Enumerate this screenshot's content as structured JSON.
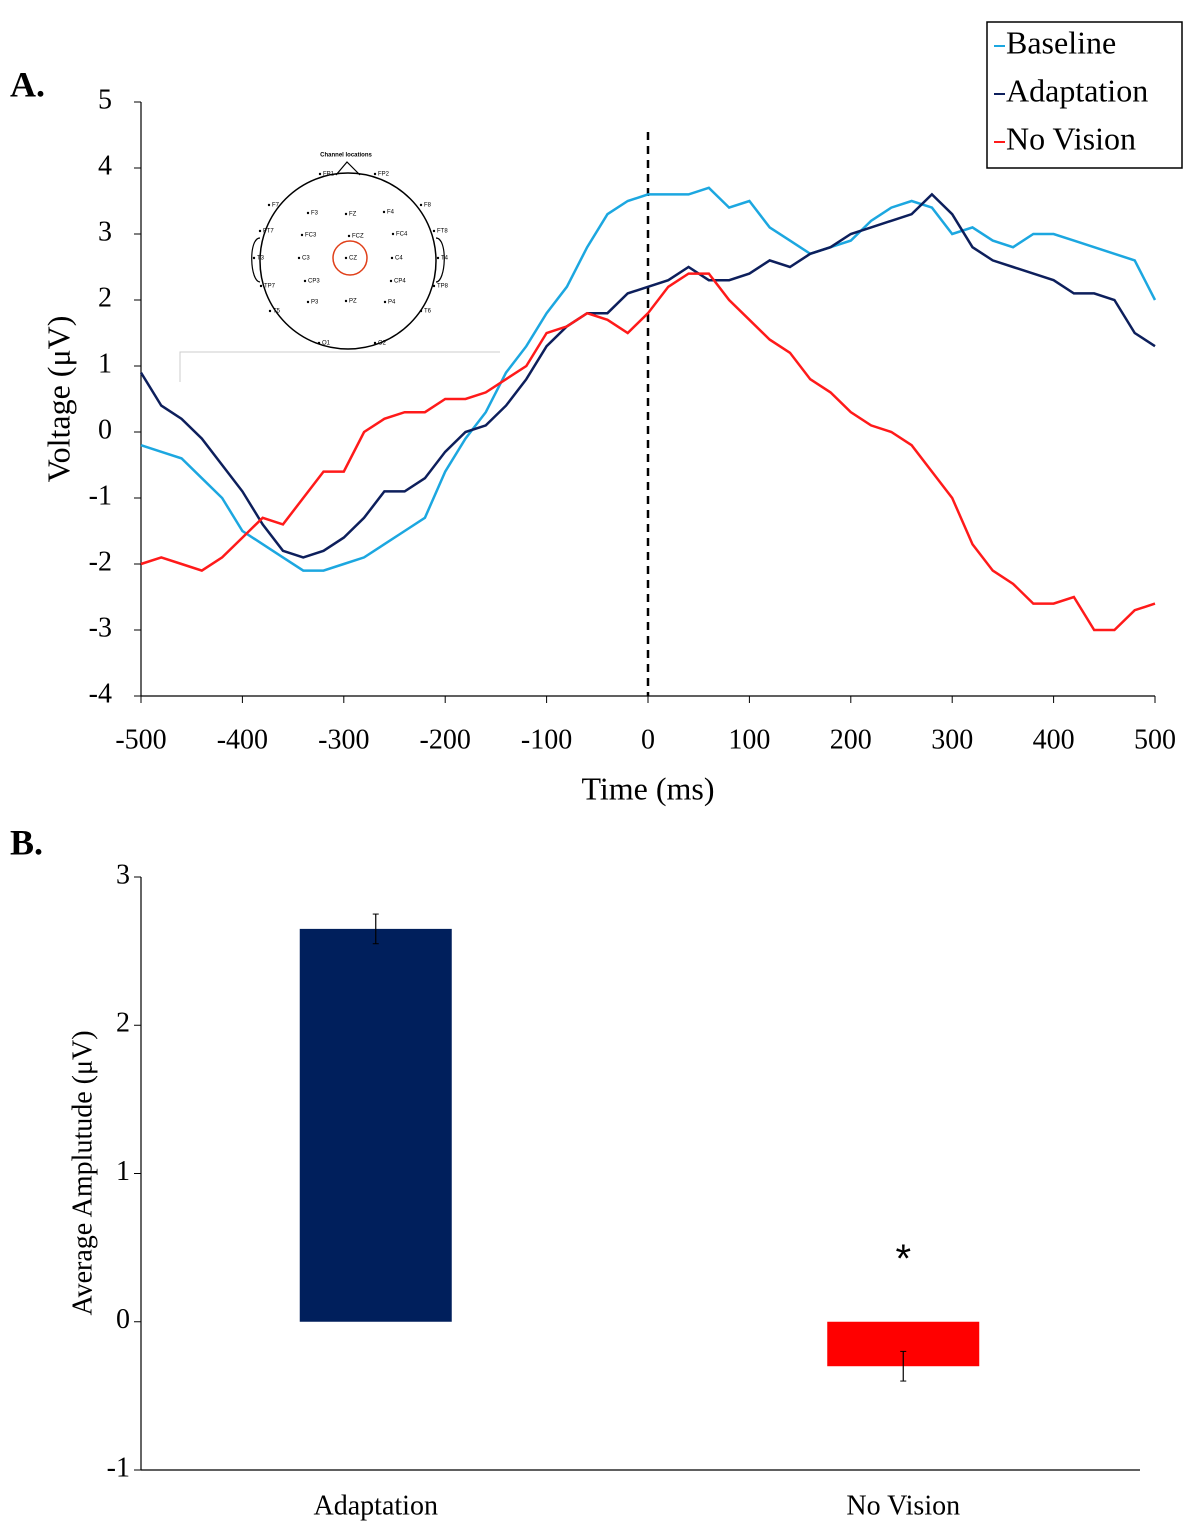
{
  "chart_data": [
    {
      "type": "line",
      "panel_label": "A.",
      "xlabel": "Time (ms)",
      "ylabel": "Voltage (μV)",
      "x": [
        -500,
        -480,
        -460,
        -440,
        -420,
        -400,
        -380,
        -360,
        -340,
        -320,
        -300,
        -280,
        -260,
        -240,
        -220,
        -200,
        -180,
        -160,
        -140,
        -120,
        -100,
        -80,
        -60,
        -40,
        -20,
        0,
        20,
        40,
        60,
        80,
        100,
        120,
        140,
        160,
        180,
        200,
        220,
        240,
        260,
        280,
        300,
        320,
        340,
        360,
        380,
        400,
        420,
        440,
        460,
        480,
        500
      ],
      "series": [
        {
          "name": "Baseline",
          "color": "#1ca7e0",
          "values": [
            -0.2,
            -0.3,
            -0.4,
            -0.7,
            -1.0,
            -1.5,
            -1.7,
            -1.9,
            -2.1,
            -2.1,
            -2.0,
            -1.9,
            -1.7,
            -1.5,
            -1.3,
            -0.6,
            -0.1,
            0.3,
            0.9,
            1.3,
            1.8,
            2.2,
            2.8,
            3.3,
            3.5,
            3.6,
            3.6,
            3.6,
            3.7,
            3.4,
            3.5,
            3.1,
            2.9,
            2.7,
            2.8,
            2.9,
            3.2,
            3.4,
            3.5,
            3.4,
            3.0,
            3.1,
            2.9,
            2.8,
            3.0,
            3.0,
            2.9,
            2.8,
            2.7,
            2.6,
            2.0
          ]
        },
        {
          "name": "Adaptation",
          "color": "#0d1f5c",
          "values": [
            0.9,
            0.4,
            0.2,
            -0.1,
            -0.5,
            -0.9,
            -1.4,
            -1.8,
            -1.9,
            -1.8,
            -1.6,
            -1.3,
            -0.9,
            -0.9,
            -0.7,
            -0.3,
            0.0,
            0.1,
            0.4,
            0.8,
            1.3,
            1.6,
            1.8,
            1.8,
            2.1,
            2.2,
            2.3,
            2.5,
            2.3,
            2.3,
            2.4,
            2.6,
            2.5,
            2.7,
            2.8,
            3.0,
            3.1,
            3.2,
            3.3,
            3.6,
            3.3,
            2.8,
            2.6,
            2.5,
            2.4,
            2.3,
            2.1,
            2.1,
            2.0,
            1.5,
            1.3
          ]
        },
        {
          "name": "No Vision",
          "color": "#ff1a1a",
          "values": [
            -2.0,
            -1.9,
            -2.0,
            -2.1,
            -1.9,
            -1.6,
            -1.3,
            -1.4,
            -1.0,
            -0.6,
            -0.6,
            0.0,
            0.2,
            0.3,
            0.3,
            0.5,
            0.5,
            0.6,
            0.8,
            1.0,
            1.5,
            1.6,
            1.8,
            1.7,
            1.5,
            1.8,
            2.2,
            2.4,
            2.4,
            2.0,
            1.7,
            1.4,
            1.2,
            0.8,
            0.6,
            0.3,
            0.1,
            0.0,
            -0.2,
            -0.6,
            -1.0,
            -1.7,
            -2.1,
            -2.3,
            -2.6,
            -2.6,
            -2.5,
            -3.0,
            -3.0,
            -2.7,
            -2.6
          ]
        }
      ],
      "xlim": [
        -500,
        500
      ],
      "xticks": [
        -500,
        -400,
        -300,
        -200,
        -100,
        0,
        100,
        200,
        300,
        400,
        500
      ],
      "ylim": [
        -4,
        5
      ],
      "yticks": [
        -4,
        -3,
        -2,
        -1,
        0,
        1,
        2,
        3,
        4,
        5
      ],
      "vline": 0,
      "legend": "upper right",
      "inset": {
        "title": "Channel locations",
        "labels": [
          "FP1",
          "FP2",
          "F7",
          "F3",
          "FZ",
          "F4",
          "F8",
          "FT7",
          "FC3",
          "FCZ",
          "FC4",
          "FT8",
          "T3",
          "C3",
          "CZ",
          "C4",
          "T4",
          "TP7",
          "CP3",
          "CP4",
          "TP8",
          "T5",
          "P3",
          "PZ",
          "P4",
          "T6",
          "O1",
          "O2"
        ]
      }
    },
    {
      "type": "bar",
      "panel_label": "B.",
      "ylabel": "Average Amplutude (μV)",
      "categories": [
        "Adaptation",
        "No Vision"
      ],
      "values": [
        2.65,
        -0.3
      ],
      "errors": [
        0.1,
        0.1
      ],
      "colors": [
        "#001f5c",
        "#ff0000"
      ],
      "annotations": [
        "",
        "*"
      ],
      "ylim": [
        -1,
        3
      ],
      "yticks": [
        -1,
        0,
        1,
        2,
        3
      ]
    }
  ]
}
